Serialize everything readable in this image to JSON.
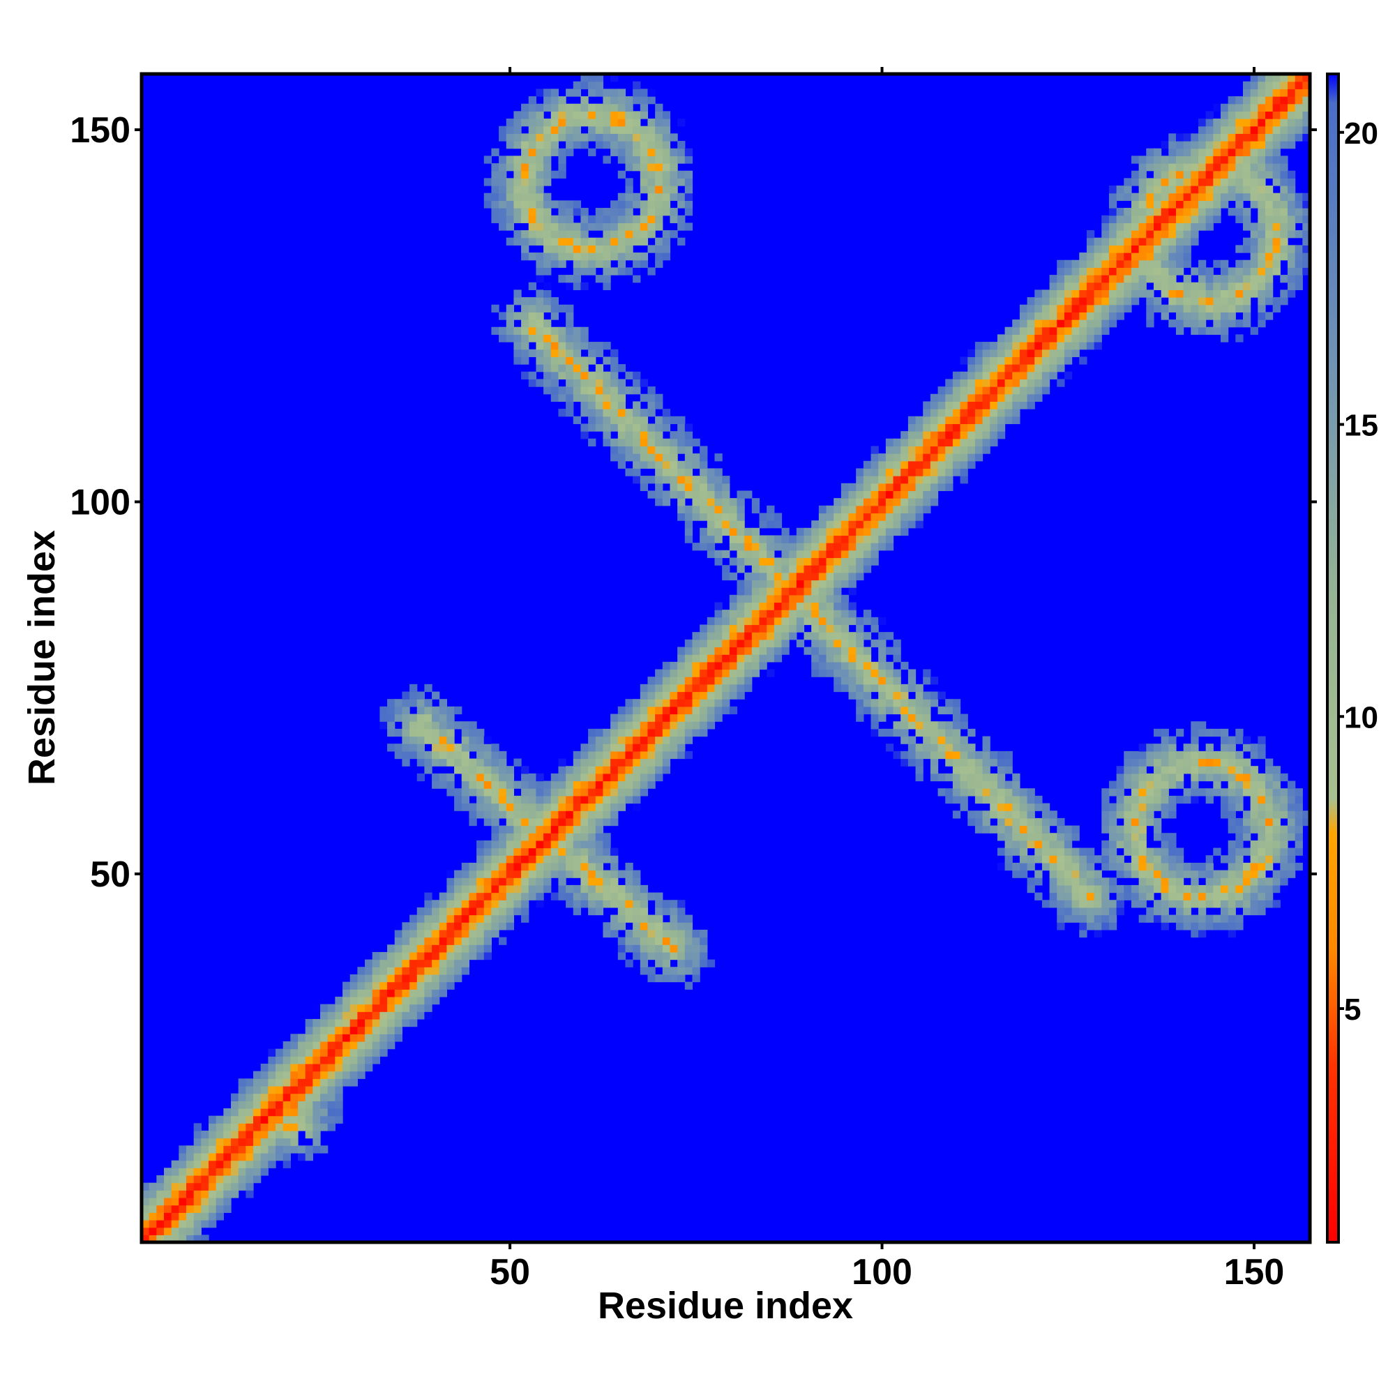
{
  "chart_data": {
    "type": "heatmap",
    "title": "",
    "xlabel": "Residue index",
    "ylabel": "Residue index",
    "xlim": [
      1,
      157
    ],
    "ylim": [
      1,
      157
    ],
    "n_residues": 157,
    "xticks": [
      50,
      100,
      150
    ],
    "yticks": [
      50,
      100,
      150
    ],
    "colorbar": {
      "range": [
        1,
        21
      ],
      "ticks": [
        5,
        10,
        15,
        20
      ],
      "stops": [
        {
          "value": 1,
          "color": "#ff0000"
        },
        {
          "value": 4,
          "color": "#ff3300"
        },
        {
          "value": 6,
          "color": "#ff8800"
        },
        {
          "value": 8,
          "color": "#ffa500"
        },
        {
          "value": 8.6,
          "color": "#a8c090"
        },
        {
          "value": 12,
          "color": "#96b494"
        },
        {
          "value": 16,
          "color": "#7094b4"
        },
        {
          "value": 20.5,
          "color": "#4a6ec8"
        },
        {
          "value": 21,
          "color": "#0000ff"
        }
      ]
    },
    "background_value": 21,
    "contact_bands": [
      {
        "name": "diagonal",
        "from": [
          1,
          1
        ],
        "to": [
          157,
          157
        ],
        "core": 1
      },
      {
        "name": "anti-diagonal",
        "from": [
          53,
          124
        ],
        "to": [
          128,
          47
        ],
        "core": 6
      },
      {
        "name": "upper-left-ring",
        "center": [
          61,
          143
        ],
        "radius": 9
      },
      {
        "name": "upper-right-ring",
        "center": [
          144,
          136
        ],
        "radius": 9
      },
      {
        "name": "lower-right-ring",
        "center": [
          143,
          56
        ],
        "radius": 9
      },
      {
        "name": "lower-left-arm",
        "from": [
          38,
          70
        ],
        "to": [
          72,
          40
        ]
      },
      {
        "name": "n-terminal-cluster",
        "center": [
          20,
          18
        ],
        "radius": 8
      }
    ]
  }
}
